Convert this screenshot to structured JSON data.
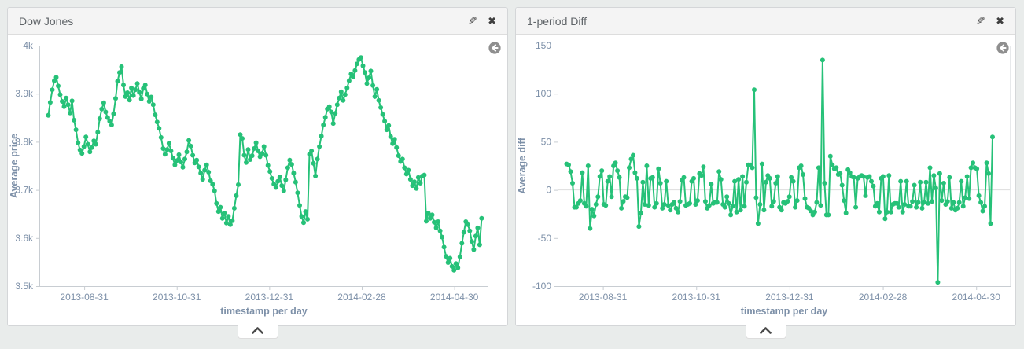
{
  "colors": {
    "page_bg": "#e9eceb",
    "panel_bg": "#ffffff",
    "panel_border": "#d4d6d8",
    "header_bg": "#f4f4f4",
    "header_text": "#5f6468",
    "tool_icon": "#3f3f3f",
    "series_green": "#26c178",
    "axis_text": "#7d90a8",
    "axis_line": "#c8cdd2",
    "grid_line": "#dddddd",
    "zoomout_circle": "#8f8f8f",
    "chevron": "#4a4a4a"
  },
  "panels": [
    {
      "title": "Dow Jones"
    },
    {
      "title": "1-period Diff"
    }
  ],
  "icons": {
    "edit": "pencil-icon",
    "close": "close-icon",
    "zoom_out": "back-arrow-icon",
    "collapse": "chevron-up-icon"
  },
  "chart_data": [
    {
      "type": "line",
      "title": "Dow Jones",
      "xlabel": "timestamp per day",
      "ylabel": "Average price",
      "legend": "none",
      "grid": "off",
      "ylim": [
        3500,
        4000
      ],
      "y_tick_values": [
        4000,
        3900,
        3800,
        3700,
        3600,
        3500
      ],
      "y_tick_labels": [
        "4k",
        "3.9k",
        "3.8k",
        "3.7k",
        "3.6k",
        "3.5k"
      ],
      "x_tick_labels": [
        "2013-08-31",
        "2013-10-31",
        "2013-12-31",
        "2014-02-28",
        "2014-04-30"
      ],
      "series_color": "#26c178",
      "values": [
        3855,
        3882,
        3908,
        3927,
        3934,
        3916,
        3898,
        3884,
        3873,
        3891,
        3877,
        3860,
        3885,
        3845,
        3825,
        3798,
        3783,
        3776,
        3790,
        3810,
        3795,
        3779,
        3788,
        3802,
        3795,
        3820,
        3848,
        3868,
        3881,
        3862,
        3850,
        3843,
        3835,
        3858,
        3890,
        3926,
        3944,
        3956,
        3918,
        3894,
        3902,
        3887,
        3912,
        3896,
        3908,
        3921,
        3903,
        3889,
        3911,
        3918,
        3899,
        3884,
        3893,
        3877,
        3856,
        3841,
        3828,
        3809,
        3786,
        3774,
        3784,
        3797,
        3781,
        3766,
        3752,
        3761,
        3773,
        3758,
        3747,
        3764,
        3779,
        3803,
        3791,
        3772,
        3756,
        3762,
        3748,
        3735,
        3722,
        3741,
        3752,
        3737,
        3719,
        3712,
        3698,
        3672,
        3655,
        3664,
        3641,
        3652,
        3631,
        3645,
        3628,
        3636,
        3662,
        3688,
        3711,
        3815,
        3807,
        3772,
        3757,
        3784,
        3763,
        3771,
        3786,
        3798,
        3781,
        3769,
        3776,
        3790,
        3772,
        3751,
        3738,
        3724,
        3712,
        3705,
        3718,
        3727,
        3709,
        3698,
        3721,
        3746,
        3762,
        3753,
        3735,
        3716,
        3694,
        3668,
        3645,
        3632,
        3655,
        3639,
        3774,
        3781,
        3755,
        3729,
        3764,
        3790,
        3812,
        3835,
        3851,
        3868,
        3873,
        3862,
        3838,
        3859,
        3877,
        3891,
        3904,
        3886,
        3898,
        3912,
        3927,
        3941,
        3935,
        3948,
        3962,
        3971,
        3975,
        3958,
        3944,
        3921,
        3933,
        3947,
        3917,
        3894,
        3909,
        3886,
        3871,
        3857,
        3843,
        3825,
        3834,
        3811,
        3796,
        3805,
        3788,
        3771,
        3759,
        3764,
        3746,
        3733,
        3741,
        3722,
        3709,
        3717,
        3703,
        3726,
        3714,
        3729,
        3731,
        3635,
        3652,
        3641,
        3648,
        3633,
        3621,
        3634,
        3615,
        3602,
        3581,
        3562,
        3549,
        3558,
        3541,
        3533,
        3547,
        3538,
        3561,
        3589,
        3612,
        3634,
        3628,
        3615,
        3593,
        3576,
        3604,
        3621,
        3586,
        3641
      ]
    },
    {
      "type": "line",
      "title": "1-period Diff",
      "xlabel": "timestamp per day",
      "ylabel": "Average diff",
      "legend": "none",
      "grid": "zero-line-only",
      "ylim": [
        -100,
        150
      ],
      "y_tick_values": [
        150,
        100,
        50,
        0,
        -50,
        -100
      ],
      "y_tick_labels": [
        "150",
        "100",
        "50",
        "0",
        "-50",
        "-100"
      ],
      "x_tick_labels": [
        "2013-08-31",
        "2013-10-31",
        "2013-12-31",
        "2014-02-28",
        "2014-04-30"
      ],
      "series_color": "#26c178",
      "values": [
        27,
        26,
        19,
        7,
        -18,
        -18,
        -14,
        -11,
        18,
        -14,
        -17,
        25,
        -40,
        -20,
        -27,
        -15,
        -7,
        14,
        20,
        -15,
        -16,
        9,
        14,
        -7,
        25,
        28,
        20,
        13,
        -19,
        -12,
        -7,
        -8,
        23,
        32,
        36,
        18,
        12,
        -38,
        -24,
        8,
        -15,
        25,
        -16,
        12,
        13,
        -18,
        -14,
        22,
        7,
        -19,
        -15,
        9,
        -16,
        -21,
        -15,
        -13,
        -19,
        -23,
        -12,
        10,
        13,
        -16,
        -15,
        -14,
        9,
        12,
        -15,
        -11,
        17,
        15,
        24,
        -12,
        -19,
        -16,
        6,
        -14,
        -13,
        -13,
        19,
        11,
        -15,
        -18,
        -7,
        -14,
        -26,
        -17,
        9,
        -23,
        11,
        -21,
        14,
        -17,
        8,
        26,
        26,
        23,
        104,
        -8,
        -35,
        -15,
        27,
        -21,
        8,
        15,
        12,
        -17,
        -12,
        7,
        14,
        -18,
        -21,
        -13,
        -14,
        -12,
        -7,
        13,
        9,
        -18,
        -11,
        23,
        25,
        16,
        -9,
        -18,
        -19,
        -22,
        -26,
        -23,
        -13,
        23,
        -16,
        135,
        7,
        -26,
        -26,
        35,
        26,
        22,
        23,
        16,
        17,
        5,
        -11,
        -24,
        21,
        18,
        14,
        13,
        -18,
        12,
        14,
        15,
        14,
        -6,
        13,
        14,
        9,
        4,
        -17,
        -14,
        -23,
        12,
        14,
        -30,
        -23,
        15,
        -23,
        -15,
        -14,
        -14,
        -18,
        9,
        -23,
        -15,
        9,
        -17,
        -17,
        -12,
        5,
        -18,
        -13,
        8,
        -19,
        -13,
        8,
        -14,
        23,
        -12,
        15,
        2,
        -96,
        17,
        -11,
        7,
        -15,
        -12,
        13,
        -19,
        -13,
        -21,
        -19,
        -13,
        9,
        -17,
        -8,
        14,
        -9,
        23,
        28,
        23,
        22,
        -6,
        -13,
        -22,
        -17,
        28,
        17,
        -35,
        55
      ]
    }
  ]
}
